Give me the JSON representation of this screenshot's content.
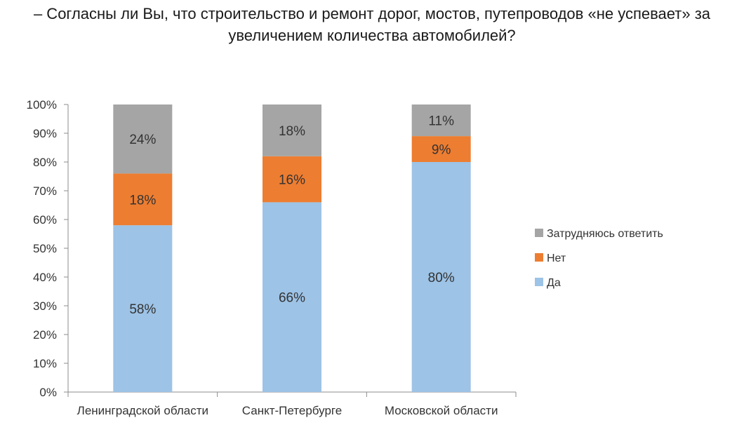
{
  "title_lines": [
    "– Согласны ли Вы, что строительство и ремонт дорог, мостов, путепроводов «не успевает» за",
    "увеличением количества автомобилей?"
  ],
  "chart_data": {
    "type": "bar",
    "stacked": true,
    "title": "– Согласны ли Вы, что строительство и ремонт дорог, мостов, путепроводов «не успевает» за увеличением количества автомобилей?",
    "categories": [
      "Ленинградской области",
      "Санкт-Петербурге",
      "Московской области"
    ],
    "series": [
      {
        "name": "Да",
        "color": "#9DC3E6",
        "values": [
          58,
          66,
          80
        ],
        "labels": [
          "58%",
          "66%",
          "80%"
        ]
      },
      {
        "name": "Нет",
        "color": "#ED7D31",
        "values": [
          18,
          16,
          9
        ],
        "labels": [
          "18%",
          "16%",
          "9%"
        ]
      },
      {
        "name": "Затрудняюсь ответить",
        "color": "#A5A5A5",
        "values": [
          24,
          18,
          11
        ],
        "labels": [
          "24%",
          "18%",
          "11%"
        ]
      }
    ],
    "yticks": [
      "0%",
      "10%",
      "20%",
      "30%",
      "40%",
      "50%",
      "60%",
      "70%",
      "80%",
      "90%",
      "100%"
    ],
    "ylim": [
      0,
      100
    ],
    "xlabel": "",
    "ylabel": "",
    "grid": false,
    "legend_position": "right",
    "legend_order": [
      "Затрудняюсь ответить",
      "Нет",
      "Да"
    ]
  }
}
